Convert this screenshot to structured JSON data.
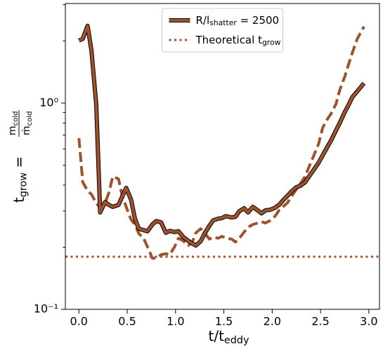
{
  "chart_data": {
    "type": "line",
    "xlabel": [
      "t/t",
      "eddy"
    ],
    "ylabel": {
      "lhs": [
        "t",
        "grow",
        " = "
      ],
      "numerator": [
        "m",
        "cold"
      ],
      "denominator": [
        "ṁ",
        "cold"
      ]
    },
    "x": [
      0.0,
      0.04,
      0.09,
      0.13,
      0.18,
      0.22,
      0.27,
      0.31,
      0.35,
      0.41,
      0.45,
      0.49,
      0.54,
      0.58,
      0.62,
      0.67,
      0.71,
      0.76,
      0.8,
      0.85,
      0.9,
      0.94,
      0.99,
      1.03,
      1.08,
      1.13,
      1.17,
      1.21,
      1.26,
      1.3,
      1.35,
      1.39,
      1.44,
      1.48,
      1.52,
      1.58,
      1.62,
      1.66,
      1.71,
      1.75,
      1.8,
      1.85,
      1.89,
      1.93,
      1.98,
      2.03,
      2.07,
      2.11,
      2.16,
      2.2,
      2.25,
      2.29,
      2.34,
      2.38,
      2.43,
      2.48,
      2.52,
      2.56,
      2.61,
      2.66,
      2.7,
      2.75,
      2.79,
      2.83,
      2.88,
      2.95
    ],
    "series": [
      {
        "name": [
          "R/l",
          "shatter",
          " = 2500"
        ],
        "color": "#a0522d",
        "outline": "#000000",
        "style": "solid",
        "values": [
          2.01,
          2.05,
          2.37,
          1.8,
          0.98,
          0.295,
          0.331,
          0.321,
          0.314,
          0.321,
          0.353,
          0.388,
          0.34,
          0.275,
          0.246,
          0.242,
          0.239,
          0.258,
          0.268,
          0.264,
          0.235,
          0.24,
          0.237,
          0.239,
          0.224,
          0.215,
          0.209,
          0.204,
          0.214,
          0.233,
          0.254,
          0.27,
          0.275,
          0.277,
          0.283,
          0.279,
          0.281,
          0.299,
          0.309,
          0.295,
          0.314,
          0.302,
          0.292,
          0.302,
          0.304,
          0.311,
          0.321,
          0.337,
          0.356,
          0.373,
          0.391,
          0.397,
          0.413,
          0.44,
          0.475,
          0.514,
          0.556,
          0.601,
          0.66,
          0.737,
          0.803,
          0.903,
          0.98,
          1.07,
          1.14,
          1.25
        ]
      },
      {
        "color": "#a0522d",
        "style": "dashed",
        "values": [
          0.676,
          0.413,
          0.376,
          0.361,
          0.327,
          0.311,
          0.327,
          0.367,
          0.44,
          0.429,
          0.353,
          0.314,
          0.272,
          0.258,
          0.233,
          0.221,
          0.201,
          0.177,
          0.177,
          0.184,
          0.186,
          0.184,
          0.201,
          0.221,
          0.215,
          0.204,
          0.21,
          0.235,
          0.246,
          0.235,
          0.219,
          0.224,
          0.221,
          0.226,
          0.221,
          0.219,
          0.212,
          0.221,
          0.237,
          0.25,
          0.258,
          0.262,
          0.266,
          0.262,
          0.27,
          0.283,
          0.302,
          0.314,
          0.329,
          0.353,
          0.382,
          0.406,
          0.44,
          0.49,
          0.556,
          0.635,
          0.755,
          0.822,
          0.889,
          0.99,
          1.16,
          1.34,
          1.54,
          1.76,
          2.05,
          2.35
        ]
      }
    ],
    "reference_line": {
      "name": [
        "Theoretical t",
        "grow"
      ],
      "value": 0.18,
      "color": "#a0522d",
      "style": "dotted"
    },
    "xlim": [
      -0.14,
      3.11
    ],
    "xticks": [
      {
        "value": 0,
        "label": "0.0"
      },
      0.5,
      {
        "value": 1,
        "label": "1.0"
      },
      1.5,
      {
        "value": 2,
        "label": "2.0"
      },
      2.5,
      {
        "value": 3,
        "label": "3.0"
      }
    ],
    "ylim": [
      0.1,
      3.04
    ],
    "log_y": true,
    "yticks": [
      {
        "value": 0.1,
        "label": "10⁻¹"
      },
      {
        "value": 1,
        "label": "10⁰"
      }
    ],
    "yminor_ticks": [
      0.2,
      0.3,
      0.4,
      0.5,
      0.6,
      0.7,
      0.8,
      0.9,
      2,
      3
    ],
    "legend": "upper center"
  }
}
